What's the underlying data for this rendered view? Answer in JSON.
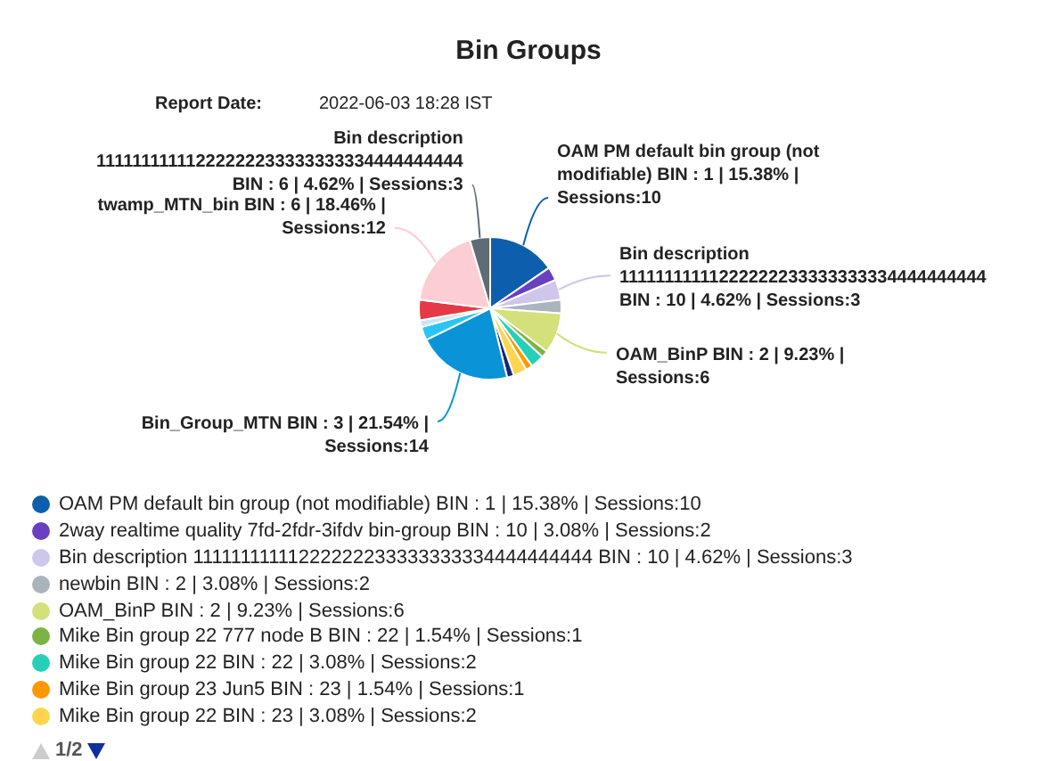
{
  "chart_data": {
    "type": "pie",
    "title": "Bin Groups",
    "annotations": [
      "Report Date:",
      "2022-06-03 18:28 IST",
      "1/2"
    ],
    "categories": [
      "OAM PM default bin group (not modifiable) BIN : 1 | 15.38% | Sessions:10",
      "2way realtime quality 7fd-2fdr-3ifdv bin-group BIN : 10 | 3.08% | Sessions:2",
      "Bin description 11111111111222222233333333334444444444 BIN : 10 | 4.62% | Sessions:3",
      "newbin BIN : 2 | 3.08% | Sessions:2",
      "OAM_BinP BIN : 2 | 9.23% | Sessions:6",
      "Mike Bin group 22 777 node B BIN : 22 | 1.54% | Sessions:1",
      "Mike Bin group 22 BIN : 22 | 3.08% | Sessions:2",
      "Mike Bin group 23 Jun5 BIN : 23 | 1.54% | Sessions:1",
      "Mike Bin group 22 BIN : 23 | 3.08% | Sessions:2",
      null,
      null,
      null,
      null,
      null,
      null,
      null
    ],
    "values": [
      10,
      2,
      3,
      2,
      6,
      1,
      2,
      1,
      2,
      1,
      14,
      2,
      1,
      3,
      12,
      3
    ],
    "colors": [
      "#0d5fae",
      "#6a3fc0",
      "#cfc6ec",
      "#a9b4bc",
      "#d4e07a",
      "#7cb342",
      "#26d0b8",
      "#ff9800",
      "#ffd54f",
      "#1a237e",
      "#0a93d6",
      "#29c5f6",
      "#c8e6f5",
      "#e53945",
      "#fccdd2",
      "#5f6b75"
    ],
    "value_labels": [
      "OAM PM default bin group (not modifiable) BIN : 1 | 15.38% | Sessions:10",
      null,
      "Bin description 11111111111222222233333333334444444444 BIN : 10 | 4.62% | Sessions:3",
      null,
      "OAM_BinP BIN : 2 | 9.23% | Sessions:6",
      null,
      null,
      null,
      null,
      null,
      "Bin_Group_MTN BIN : 3 | 21.54% | Sessions:14",
      null,
      null,
      null,
      "twamp_MTN_bin BIN : 6 | 18.46% | Sessions:12",
      "Bin description 11111111111222222233333333334444444444 BIN : 6 | 4.62% | Sessions:3"
    ],
    "legend": "bottom"
  }
}
